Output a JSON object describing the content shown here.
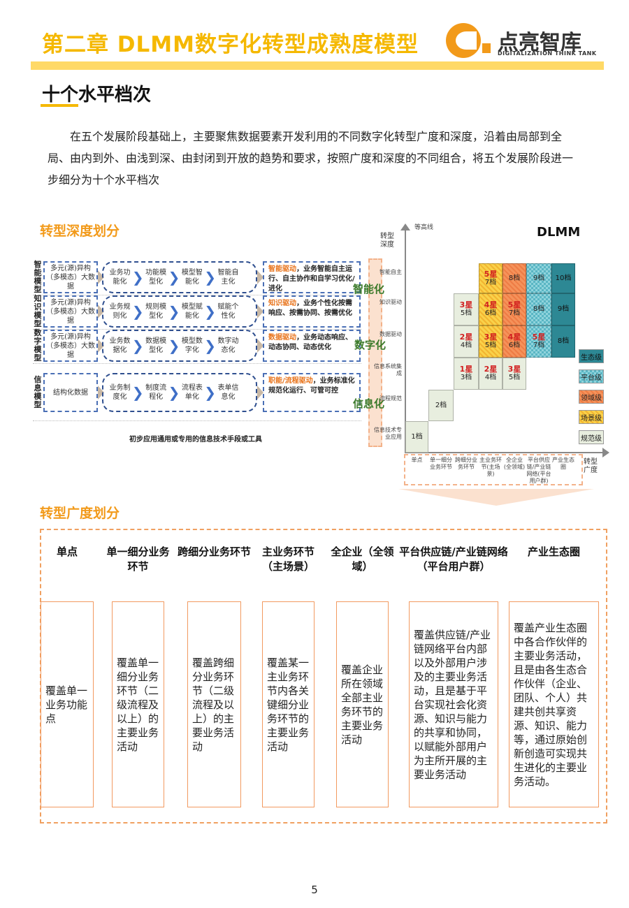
{
  "header": {
    "chapter_title": "第二章  DLMM数字化转型成熟度模型",
    "logo_name": "点亮智库",
    "logo_sub": "DIGITALIZATION THINK TANK"
  },
  "section": {
    "title": "十个水平档次",
    "intro": "在五个发展阶段基础上，主要聚焦数据要素开发利用的不同数字化转型广度和深度，沿着由局部到全局、由内到外、由浅到深、由封闭到开放的趋势和要求，按照广度和深度的不同组合，将五个发展阶段进一步细分为十个水平档次"
  },
  "depth": {
    "title": "转型深度划分",
    "rows": [
      {
        "label": "智能模型",
        "source": "多元(源)异构（多模态）大数据",
        "steps": [
          "业务功能化",
          "功能模型化",
          "模型智能化",
          "智能自主化"
        ],
        "driver": "智能驱动",
        "result": "，业务智能自主运行、自主协作和自学习优化/进化"
      },
      {
        "label": "知识模型",
        "source": "多元(源)异构（多模态）大数据",
        "steps": [
          "业务规则化",
          "规则模型化",
          "模型赋能化",
          "赋能个性化"
        ],
        "driver": "知识驱动",
        "result": "，业务个性化按需响应、按需协同、按需优化"
      },
      {
        "label": "数字模型",
        "source": "多元(源)异构（多模态）大数据",
        "steps": [
          "业务数据化",
          "数据模型化",
          "模型数字化",
          "数字动态化"
        ],
        "driver": "数据驱动",
        "result": "，业务动态响应、动态协同、动态优化"
      },
      {
        "label": "信息模型",
        "source": "结构化数据",
        "steps": [
          "业务制度化",
          "制度流程化",
          "流程表单化",
          "表单信息化"
        ],
        "driver": "职能/流程驱动",
        "result": "，业务标准化规范化运行、可管可控"
      }
    ],
    "footer": "初步应用通用或专用的信息技术手段或工具",
    "levels": [
      "智能化",
      "数字化",
      "信息化"
    ]
  },
  "matrix": {
    "brand": "DLMM",
    "contour_label": "等高线",
    "y_axis": "转型深度",
    "x_axis": "转型广度",
    "y_labels": [
      "信息技术专业应用",
      "流程规范",
      "信息系统集成",
      "数据驱动",
      "知识驱动",
      "智能自主"
    ],
    "x_labels": [
      "单点",
      "单一细分业务环节",
      "跨细分业务环节",
      "主业务环节(主场景)",
      "全企业(全领域)",
      "平台供应链/产业链网络(平台用户群)",
      "产业生态圈"
    ],
    "cells": [
      {
        "col": 0,
        "row": 0,
        "star": "",
        "grade": "1档",
        "tier": "规范级"
      },
      {
        "col": 1,
        "row": 1,
        "star": "",
        "grade": "2档",
        "tier": "规范级"
      },
      {
        "col": 2,
        "row": 2,
        "star": "1星",
        "grade": "3档",
        "tier": "规范级"
      },
      {
        "col": 2,
        "row": 3,
        "star": "2星",
        "grade": "4档",
        "tier": "规范级"
      },
      {
        "col": 2,
        "row": 4,
        "star": "3星",
        "grade": "5档",
        "tier": "规范级"
      },
      {
        "col": 3,
        "row": 2,
        "star": "2星",
        "grade": "4档",
        "tier": "规范级"
      },
      {
        "col": 3,
        "row": 3,
        "star": "3星",
        "grade": "5档",
        "tier": "场景级"
      },
      {
        "col": 3,
        "row": 4,
        "star": "4星",
        "grade": "6档",
        "tier": "场景级"
      },
      {
        "col": 3,
        "row": 5,
        "star": "5星",
        "grade": "7档",
        "tier": "场景级"
      },
      {
        "col": 4,
        "row": 2,
        "star": "3星",
        "grade": "5档",
        "tier": "规范级"
      },
      {
        "col": 4,
        "row": 3,
        "star": "4星",
        "grade": "6档",
        "tier": "领域级"
      },
      {
        "col": 4,
        "row": 4,
        "star": "5星",
        "grade": "7档",
        "tier": "领域级"
      },
      {
        "col": 4,
        "row": 5,
        "star": "",
        "grade": "8档",
        "tier": "领域级"
      },
      {
        "col": 5,
        "row": 3,
        "star": "5星",
        "grade": "7档",
        "tier": "平台级"
      },
      {
        "col": 5,
        "row": 4,
        "star": "",
        "grade": "8档",
        "tier": "平台级"
      },
      {
        "col": 5,
        "row": 5,
        "star": "",
        "grade": "9档",
        "tier": "平台级"
      },
      {
        "col": 6,
        "row": 3,
        "star": "",
        "grade": "8档",
        "tier": "生态级"
      },
      {
        "col": 6,
        "row": 4,
        "star": "",
        "grade": "9档",
        "tier": "生态级"
      },
      {
        "col": 6,
        "row": 5,
        "star": "",
        "grade": "10档",
        "tier": "生态级"
      }
    ],
    "legend": [
      "生态级",
      "平台级",
      "领域级",
      "场景级",
      "规范级"
    ],
    "tier_colors": {
      "规范级": "#e8eedf",
      "场景级": "#f9d24a",
      "领域级": "#f5925a",
      "平台级": "#5ab6c4",
      "生态级": "#2d8894"
    }
  },
  "breadth": {
    "title": "转型广度划分",
    "columns": [
      {
        "head": "单点",
        "body": "覆盖单一业务功能点"
      },
      {
        "head": "单一细分业务环节",
        "body": "覆盖单一细分业务环节（二级流程及以上）的主要业务活动"
      },
      {
        "head": "跨细分业务环节",
        "body": "覆盖跨细分业务环节（二级流程及以上）的主要业务活动"
      },
      {
        "head": "主业务环节（主场景）",
        "body": "覆盖某一主业务环节内各关键细分业务环节的主要业务活动"
      },
      {
        "head": "全企业（全领域）",
        "body": "覆盖企业所在领域全部主业务环节的主要业务活动"
      },
      {
        "head": "平台供应链/产业链网络（平台用户群）",
        "body": "覆盖供应链/产业链网络平台内部以及外部用户涉及的主要业务活动，且是基于平台实现社会化资源、知识与能力的共享和协同，以赋能外部用户为主所开展的主要业务活动"
      },
      {
        "head": "产业生态圈",
        "body": "覆盖产业生态圈中各合作伙伴的主要业务活动，且是由各生态合作伙伴（企业、团队、个人）共建共创共享资源、知识、能力等，通过原始创新创造可实现共生进化的主要业务活动。"
      }
    ]
  },
  "page_number": "5",
  "colors": {
    "accent": "#f5b800",
    "orange": "#f29a1a"
  }
}
